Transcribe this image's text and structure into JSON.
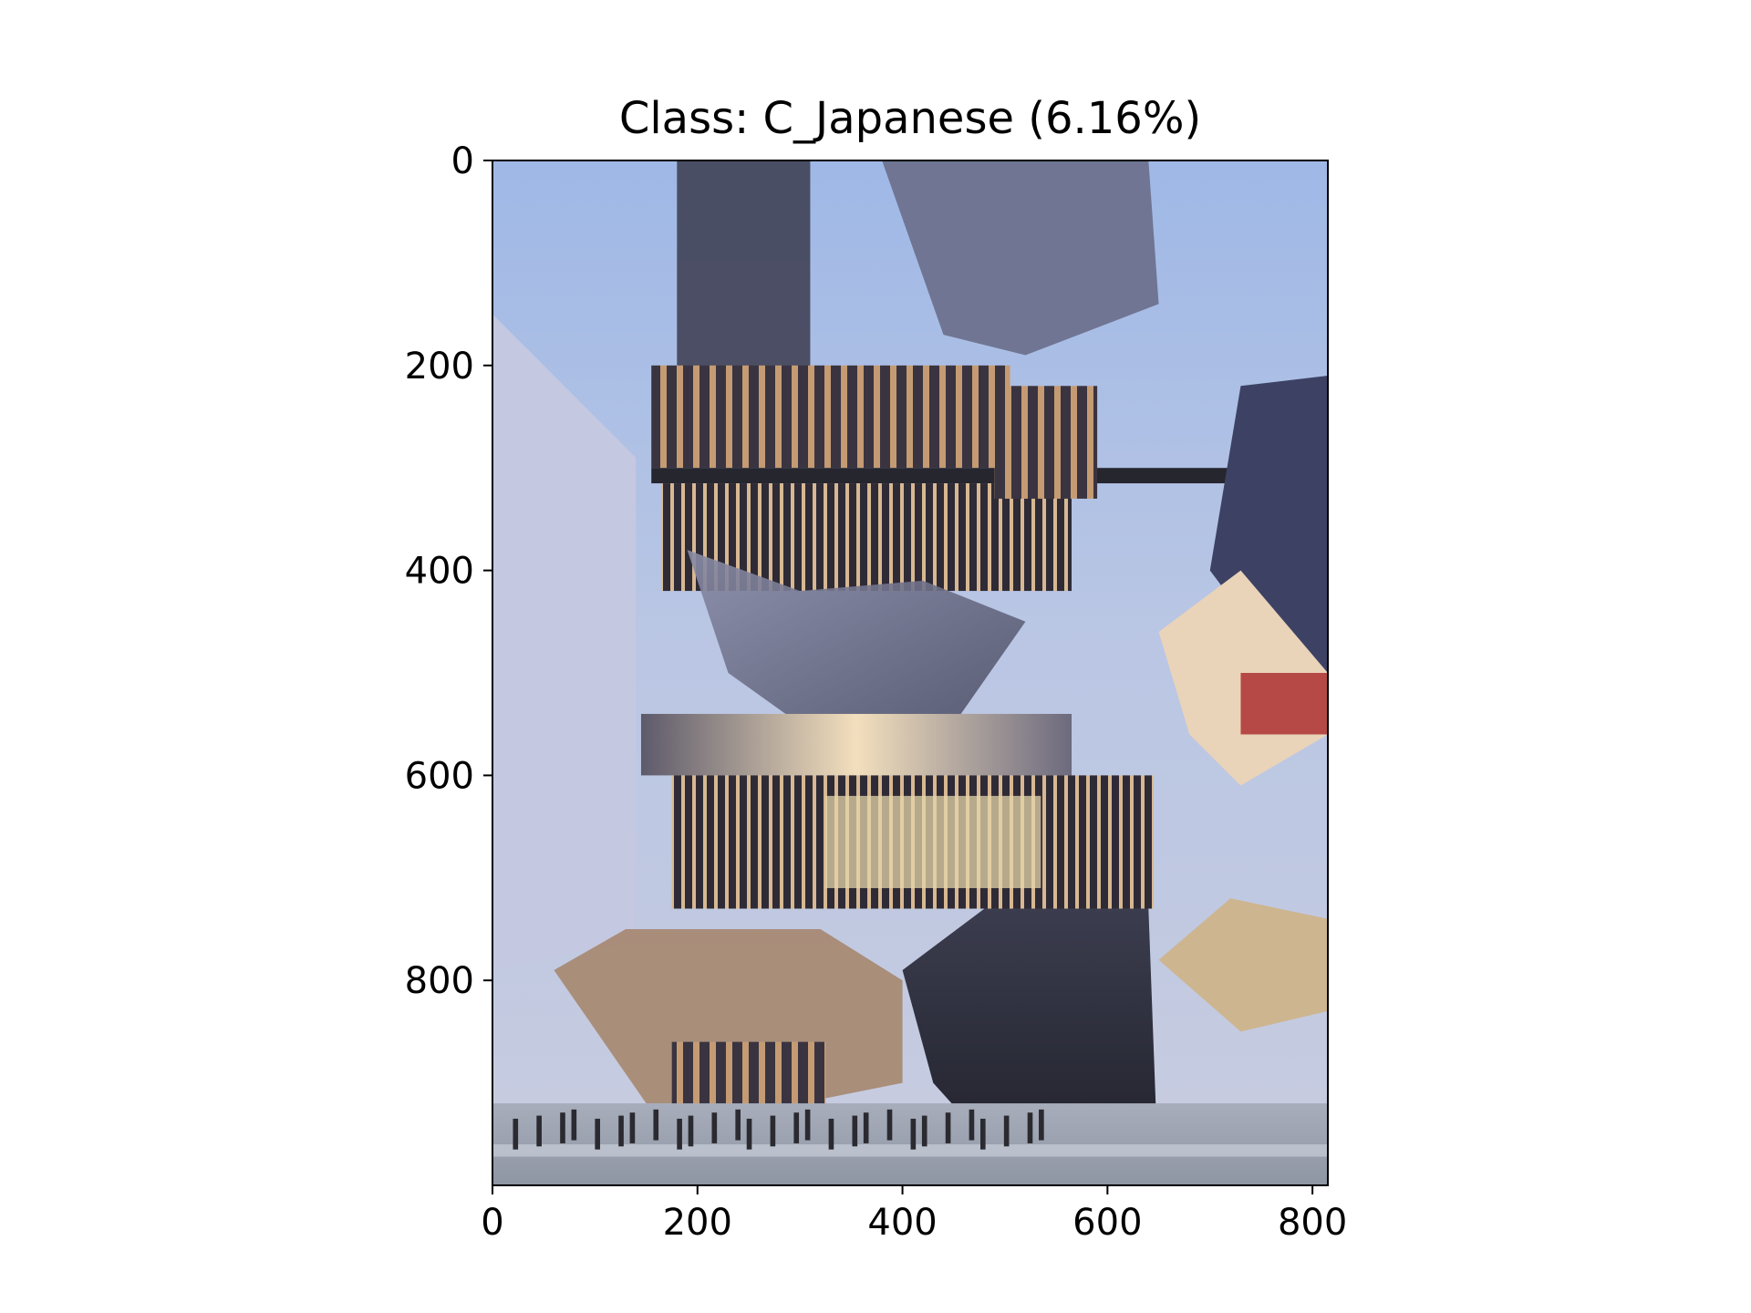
{
  "chart_data": {
    "type": "image",
    "title": "Class: C_Japanese (6.16%)",
    "xlabel": "",
    "ylabel": "",
    "xlim": [
      0,
      815
    ],
    "ylim": [
      1000,
      0
    ],
    "xticks": [
      0,
      200,
      400,
      600,
      800
    ],
    "yticks": [
      0,
      200,
      400,
      600,
      800
    ],
    "xtick_labels": [
      "0",
      "200",
      "400",
      "600",
      "800"
    ],
    "ytick_labels": [
      "0",
      "200",
      "400",
      "600",
      "800"
    ],
    "grid": false,
    "legend": "none",
    "image_content": "distorted-building-photo",
    "colors": {
      "sky_top": "#9db5e3",
      "sky_mid": "#b7c4e2",
      "sky_low": "#c9cfe6",
      "wood": "#b88c67",
      "dark": "#2b2b36",
      "warm_light": "#f2dcb4",
      "grey_blob": "#7f7f96",
      "street": "#9aa3b1"
    }
  }
}
